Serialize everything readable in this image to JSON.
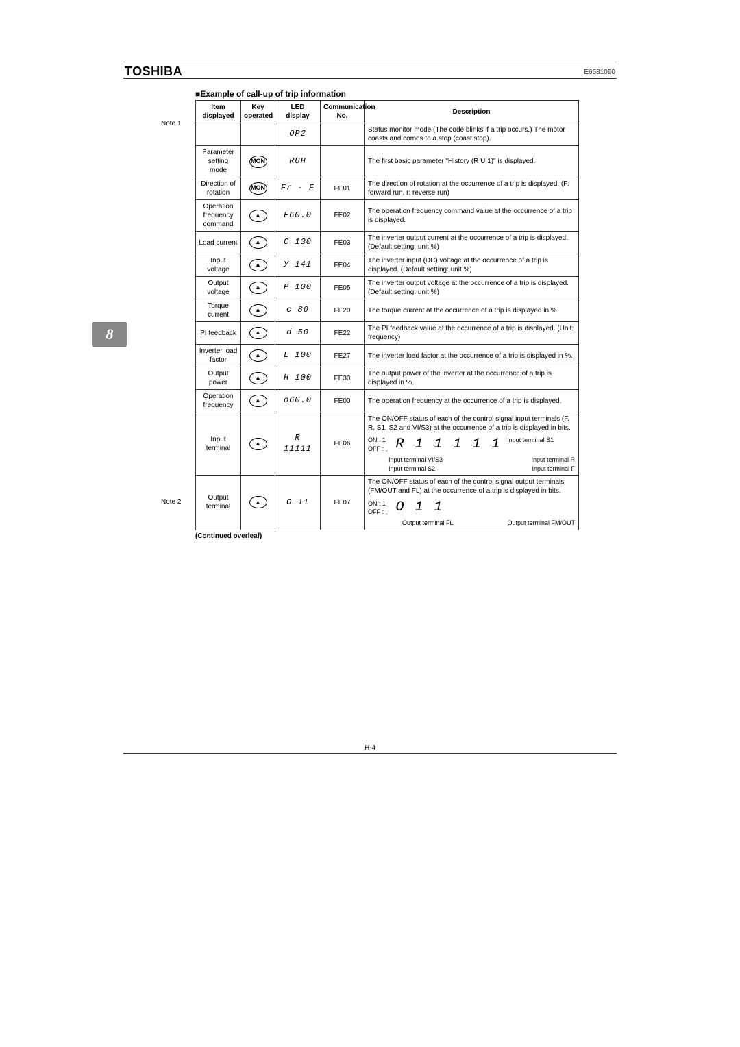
{
  "brand": "TOSHIBA",
  "doc_code": "E6581090",
  "side_tab": "8",
  "table_title": "■Example of call-up of trip information",
  "note1": "Note 1",
  "note2": "Note 2",
  "continued": "(Continued overleaf)",
  "page_num": "H-4",
  "headers": {
    "item": "Item displayed",
    "key": "Key operated",
    "led": "LED display",
    "comm": "Communication No.",
    "desc": "Description"
  },
  "rows": [
    {
      "item": "",
      "key": "",
      "led": "OP2",
      "comm": "",
      "desc": "Status monitor mode (The code blinks if a trip occurs.) The motor coasts and comes to a stop (coast stop)."
    },
    {
      "item": "Parameter setting mode",
      "key": "MON",
      "led": "RUН",
      "comm": "",
      "desc": "The first basic parameter \"History (R U 1)\" is displayed."
    },
    {
      "item": "Direction of rotation",
      "key": "MON",
      "led": "Fr - F",
      "comm": "FE01",
      "desc": "The direction of rotation at the occurrence of a trip is displayed. (F: forward run, r: reverse run)"
    },
    {
      "item": "Operation frequency command",
      "key": "UP",
      "led": "F60.0",
      "comm": "FE02",
      "desc": "The operation frequency command value at the occurrence of a trip is displayed."
    },
    {
      "item": "Load current",
      "key": "UP",
      "led": "C 130",
      "comm": "FE03",
      "desc": "The inverter output current at the occurrence of a trip is displayed. (Default setting: unit %)"
    },
    {
      "item": "Input voltage",
      "key": "UP",
      "led": "У 141",
      "comm": "FE04",
      "desc": "The inverter input (DC) voltage at the occurrence of a trip is displayed. (Default setting: unit %)"
    },
    {
      "item": "Output voltage",
      "key": "UP",
      "led": "P 100",
      "comm": "FE05",
      "desc": "The inverter output voltage at the occurrence of a trip is displayed. (Default setting: unit %)"
    },
    {
      "item": "Torque current",
      "key": "UP",
      "led": "с  80",
      "comm": "FE20",
      "desc": "The torque current at the occurrence of a trip is displayed in %."
    },
    {
      "item": "PI feedback",
      "key": "UP",
      "led": "d  50",
      "comm": "FE22",
      "desc": "The PI feedback value at the occurrence of a trip is displayed. (Unit: frequency)"
    },
    {
      "item": "Inverter load factor",
      "key": "UP",
      "led": "L 100",
      "comm": "FE27",
      "desc": "The inverter load factor at the occurrence of a trip is displayed in %."
    },
    {
      "item": "Output power",
      "key": "UP",
      "led": "Н 100",
      "comm": "FE30",
      "desc": "The output power of the inverter at the occurrence of a trip is displayed in %."
    },
    {
      "item": "Operation frequency",
      "key": "UP",
      "led": "о60.0",
      "comm": "FE00",
      "desc": "The operation frequency at the occurrence of a trip is displayed."
    }
  ],
  "input_terminal": {
    "item": "Input terminal",
    "led": "R 11111",
    "comm": "FE06",
    "desc_top": "The ON/OFF status of each of the control signal input terminals (F, R, S1, S2 and VI/S3) at the occurrence of a trip is displayed in bits.",
    "seg": "R  1 1 1 1 1",
    "on": "ON : 1",
    "off": "OFF : ,",
    "labels": [
      "Input terminal VI/S3",
      "Input terminal S2",
      "Input terminal S1",
      "Input terminal R",
      "Input terminal F"
    ]
  },
  "output_terminal": {
    "item": "Output terminal",
    "led": "О   11",
    "comm": "FE07",
    "desc_top": "The ON/OFF status of each of the control signal output terminals (FM/OUT and FL) at the occurrence of a trip is displayed in bits.",
    "seg": "О      1 1",
    "on": "ON : 1",
    "off": "OFF : ,",
    "labels": [
      "Output terminal FL",
      "Output terminal FM/OUT"
    ]
  }
}
